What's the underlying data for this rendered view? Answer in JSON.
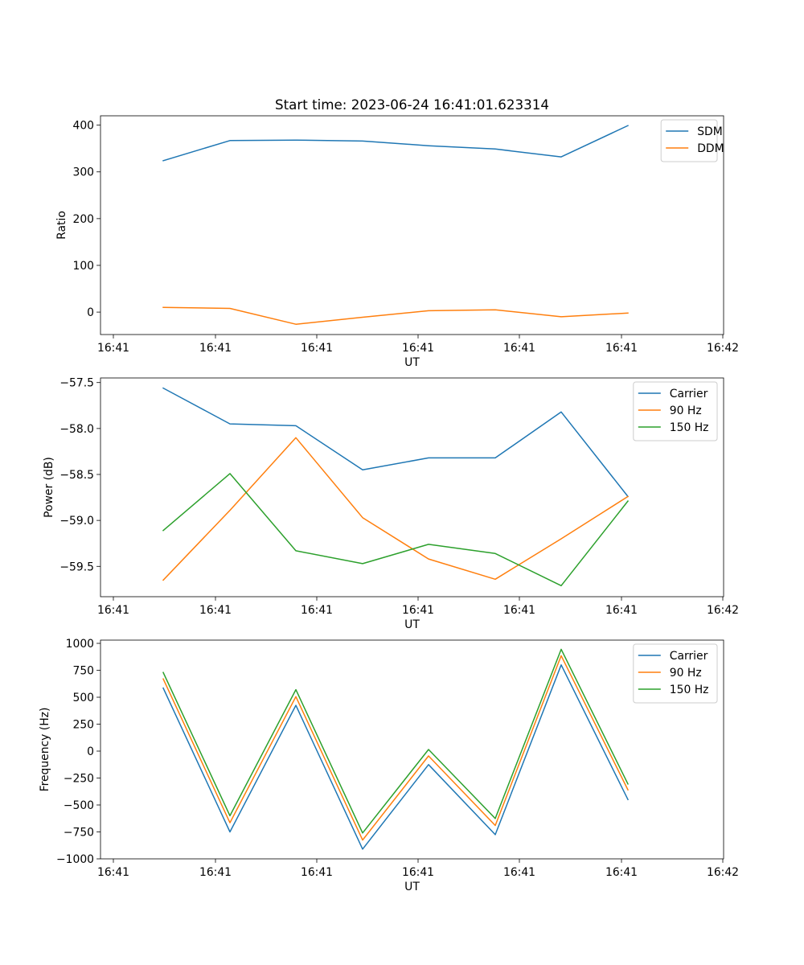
{
  "figure": {
    "title": "Start time: 2023-06-24 16:41:01.623314"
  },
  "chart_data": [
    {
      "type": "line",
      "title": "Start time: 2023-06-24 16:41:01.623314",
      "xlabel": "UT",
      "ylabel": "Ratio",
      "x_tick_labels": [
        "16:41",
        "16:41",
        "16:41",
        "16:41",
        "16:41",
        "16:41",
        "16:42"
      ],
      "y_ticks": [
        0,
        100,
        200,
        300,
        400
      ],
      "y_tick_labels": [
        "0",
        "100",
        "200",
        "300",
        "400"
      ],
      "ylim": [
        -48,
        420
      ],
      "grid": false,
      "legend_position": "upper right",
      "series": [
        {
          "name": "SDM",
          "color": "#1f77b4",
          "values": [
            324,
            367,
            368,
            366,
            356,
            349,
            332,
            399
          ]
        },
        {
          "name": "DDM",
          "color": "#ff7f0e",
          "values": [
            10,
            8,
            -26,
            -11,
            3,
            5,
            -10,
            -2
          ]
        }
      ]
    },
    {
      "type": "line",
      "title": "",
      "xlabel": "UT",
      "ylabel": "Power (dB)",
      "x_tick_labels": [
        "16:41",
        "16:41",
        "16:41",
        "16:41",
        "16:41",
        "16:41",
        "16:42"
      ],
      "y_ticks": [
        -57.5,
        -58.0,
        -58.5,
        -59.0,
        -59.5
      ],
      "y_tick_labels": [
        "−57.5",
        "−58.0",
        "−58.5",
        "−59.0",
        "−59.5"
      ],
      "ylim": [
        -59.83,
        -57.45
      ],
      "grid": false,
      "legend_position": "upper right",
      "series": [
        {
          "name": "Carrier",
          "color": "#1f77b4",
          "values": [
            -57.56,
            -57.95,
            -57.97,
            -58.45,
            -58.32,
            -58.32,
            -57.82,
            -58.74
          ]
        },
        {
          "name": "90 Hz",
          "color": "#ff7f0e",
          "values": [
            -59.65,
            -58.89,
            -58.1,
            -58.97,
            -59.42,
            -59.64,
            -59.2,
            -58.74
          ]
        },
        {
          "name": "150 Hz",
          "color": "#2ca02c",
          "values": [
            -59.11,
            -58.49,
            -59.33,
            -59.47,
            -59.26,
            -59.36,
            -59.71,
            -58.79
          ]
        }
      ]
    },
    {
      "type": "line",
      "title": "",
      "xlabel": "UT",
      "ylabel": "Frequency (Hz)",
      "x_tick_labels": [
        "16:41",
        "16:41",
        "16:41",
        "16:41",
        "16:41",
        "16:41",
        "16:42"
      ],
      "y_ticks": [
        1000,
        750,
        500,
        250,
        0,
        -250,
        -500,
        -750,
        -1000
      ],
      "y_tick_labels": [
        "1000",
        "750",
        "500",
        "250",
        "0",
        "−250",
        "−500",
        "−750",
        "−1000"
      ],
      "ylim": [
        -1000,
        1030
      ],
      "grid": false,
      "legend_position": "upper right",
      "series": [
        {
          "name": "Carrier",
          "color": "#1f77b4",
          "values": [
            585,
            -750,
            425,
            -910,
            -125,
            -775,
            800,
            -450
          ]
        },
        {
          "name": "90 Hz",
          "color": "#ff7f0e",
          "values": [
            670,
            -665,
            505,
            -825,
            -45,
            -690,
            885,
            -360
          ]
        },
        {
          "name": "150 Hz",
          "color": "#2ca02c",
          "values": [
            730,
            -600,
            570,
            -760,
            15,
            -625,
            945,
            -305
          ]
        }
      ]
    }
  ]
}
